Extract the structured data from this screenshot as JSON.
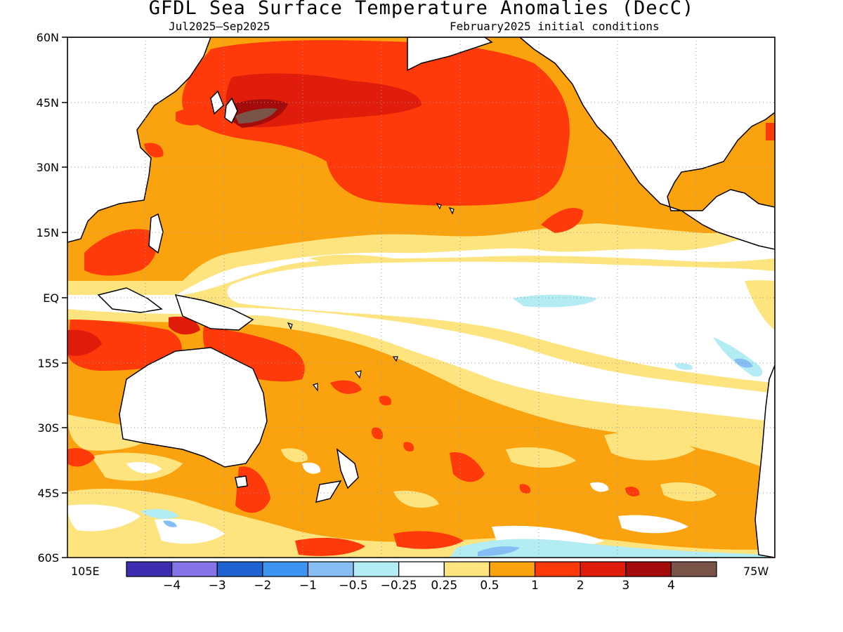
{
  "title": "GFDL Sea Surface Temperature Anomalies (DecC)",
  "subtitle_left": "Jul2025–Sep2025",
  "subtitle_right": "February2025 initial conditions",
  "lat_labels": [
    "60N",
    "45N",
    "30N",
    "15N",
    "EQ",
    "15S",
    "30S",
    "45S",
    "60S"
  ],
  "lon_left": "105E",
  "lon_right": "75W",
  "colorbar": {
    "colors": [
      "#3b2cb0",
      "#8474e8",
      "#1f63d3",
      "#3e93f0",
      "#86bdf5",
      "#b3ecf3",
      "#ffffff",
      "#fde47e",
      "#fba20f",
      "#ff3a0a",
      "#e01c0a",
      "#a30c0a",
      "#7a5448"
    ],
    "labels": [
      "−4",
      "−3",
      "−2",
      "−1",
      "−0.5",
      "−0.25",
      "0.25",
      "0.5",
      "1",
      "2",
      "3",
      "4"
    ]
  }
}
